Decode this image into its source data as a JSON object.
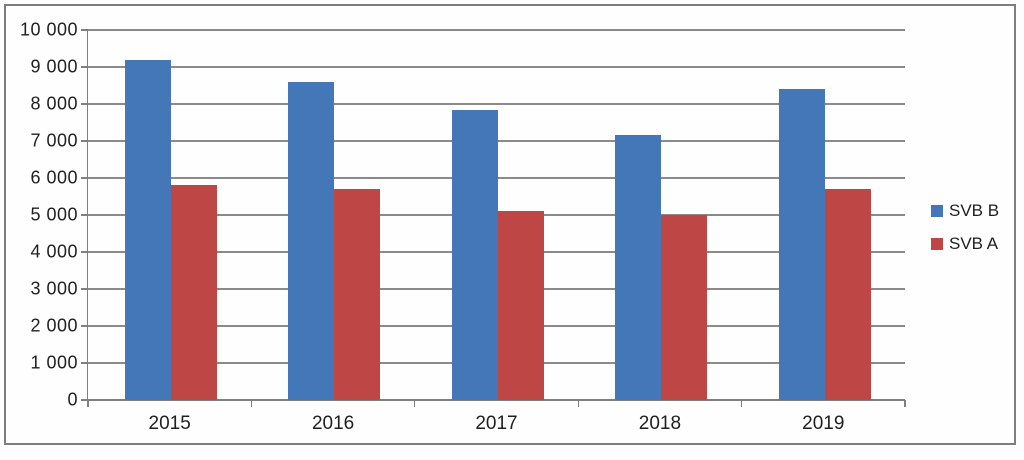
{
  "chart_data": {
    "type": "bar",
    "title": "",
    "xlabel": "",
    "ylabel": "",
    "categories": [
      "2015",
      "2016",
      "2017",
      "2018",
      "2019"
    ],
    "series": [
      {
        "name": "SVB B",
        "color": "#4377B8",
        "values": [
          9200,
          8600,
          7850,
          7150,
          8400
        ]
      },
      {
        "name": "SVB A",
        "color": "#BE4745",
        "values": [
          5800,
          5700,
          5100,
          5000,
          5700
        ]
      }
    ],
    "ylim": [
      0,
      10000
    ],
    "ytick_step": 1000,
    "ytick_labels": [
      "0",
      "1 000",
      "2 000",
      "3 000",
      "4 000",
      "5 000",
      "6 000",
      "7 000",
      "8 000",
      "9 000",
      "10 000"
    ],
    "grid": true,
    "legend_position": "right"
  },
  "styles": {
    "gridline_color": "#8a8a8a",
    "axis_color": "#7f7f7f",
    "frame_border_color": "#7d7d7d",
    "text_color": "#1f1f1f",
    "background": "#fefefe"
  }
}
